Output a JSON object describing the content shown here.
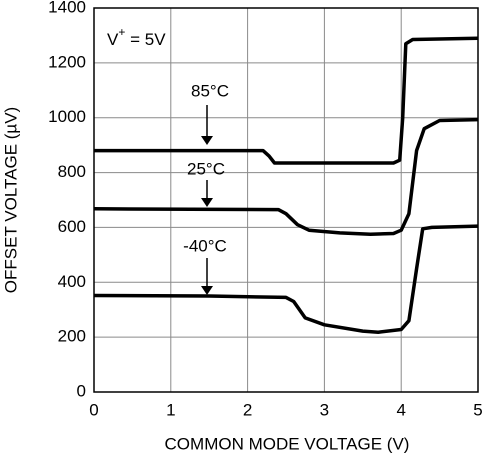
{
  "chart_data": {
    "type": "line",
    "xlabel": "COMMON MODE VOLTAGE (V)",
    "ylabel": "OFFSET VOLTAGE (µV)",
    "supply_label": [
      "V",
      "+",
      " = 5V"
    ],
    "xlim": [
      0,
      5
    ],
    "xticks": [
      0,
      1,
      2,
      3,
      4,
      5
    ],
    "ylim": [
      0,
      1400
    ],
    "yticks": [
      0,
      200,
      400,
      600,
      800,
      1000,
      1200,
      1400
    ],
    "grid": true,
    "series": [
      {
        "name": "85°C",
        "color": "#000000",
        "x": [
          0,
          2.2,
          2.28,
          2.35,
          3.9,
          3.98,
          4.02,
          4.06,
          4.15,
          5
        ],
        "values": [
          880,
          880,
          860,
          835,
          835,
          845,
          1000,
          1270,
          1285,
          1290
        ]
      },
      {
        "name": "25°C",
        "color": "#000000",
        "x": [
          0,
          2.4,
          2.5,
          2.65,
          2.8,
          3.2,
          3.6,
          3.9,
          4.0,
          4.1,
          4.2,
          4.3,
          4.5,
          5
        ],
        "values": [
          668,
          665,
          650,
          610,
          590,
          580,
          575,
          578,
          590,
          650,
          880,
          960,
          990,
          993
        ]
      },
      {
        "name": "-40°C",
        "color": "#000000",
        "x": [
          0,
          1.5,
          2.5,
          2.6,
          2.75,
          3.0,
          3.5,
          3.7,
          4.0,
          4.1,
          4.2,
          4.28,
          4.4,
          5
        ],
        "values": [
          352,
          350,
          345,
          330,
          270,
          245,
          222,
          218,
          228,
          260,
          450,
          595,
          600,
          605
        ]
      }
    ]
  }
}
